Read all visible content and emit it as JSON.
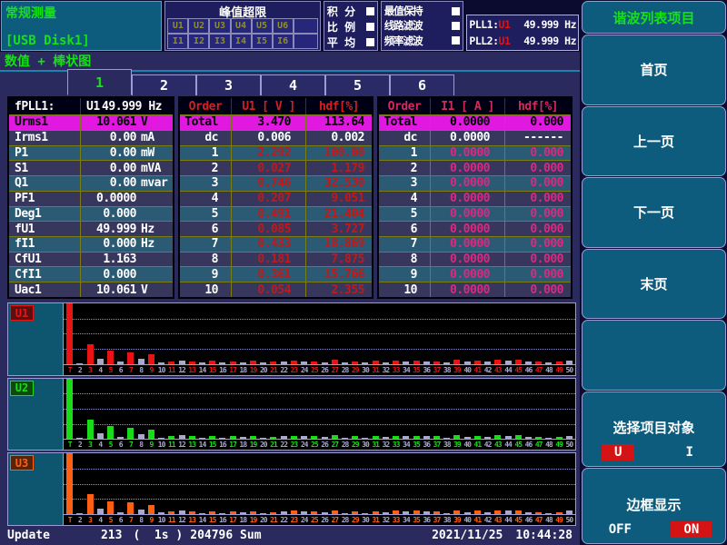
{
  "header": {
    "title": "常规测量",
    "usb": "[USB Disk1]",
    "peak_panel": {
      "title": "峰值超限",
      "row_u": [
        "U1",
        "U2",
        "U3",
        "U4",
        "U5",
        "U6",
        ""
      ],
      "row_i": [
        "I1",
        "I2",
        "I3",
        "I4",
        "I5",
        "I6",
        ""
      ]
    },
    "modes": [
      "积 分",
      "比 例",
      "平 均"
    ],
    "filters": [
      "最值保持",
      "线路滤波",
      "频率滤波"
    ],
    "pll": [
      {
        "name": "PLL1:",
        "source": "U1",
        "value": "49.999 Hz"
      },
      {
        "name": "PLL2:",
        "source": "U1",
        "value": "49.999 Hz"
      }
    ]
  },
  "view_label": "数值 + 棒状图",
  "tabs": {
    "items": [
      "1",
      "2",
      "3",
      "4",
      "5",
      "6"
    ],
    "active_index": 0
  },
  "left_table": {
    "header": {
      "name": "fPLL1:",
      "source": "U1",
      "value": "49.999 Hz"
    },
    "rows": [
      {
        "name": "Urms1",
        "value": "10.061",
        "unit": "V",
        "highlight": true
      },
      {
        "name": "Irms1",
        "value": "0.00",
        "unit": "mA"
      },
      {
        "name": "P1",
        "value": "0.00",
        "unit": "mW"
      },
      {
        "name": "S1",
        "value": "0.00",
        "unit": "mVA"
      },
      {
        "name": "Q1",
        "value": "0.00",
        "unit": "mvar"
      },
      {
        "name": "PF1",
        "value": "0.0000",
        "unit": ""
      },
      {
        "name": "Deg1",
        "value": "0.000",
        "unit": ""
      },
      {
        "name": "fU1",
        "value": "49.999",
        "unit": "Hz"
      },
      {
        "name": "fI1",
        "value": "0.000",
        "unit": "Hz"
      },
      {
        "name": "CfU1",
        "value": "1.163",
        "unit": ""
      },
      {
        "name": "CfI1",
        "value": "0.000",
        "unit": ""
      },
      {
        "name": "Uac1",
        "value": "10.061",
        "unit": "V"
      }
    ]
  },
  "u_table": {
    "headers": [
      "Order",
      "U1 [ V ]",
      "hdf[%]"
    ],
    "rows": [
      {
        "order": "Total",
        "value": "3.470",
        "hdf": "113.64",
        "highlight": true
      },
      {
        "order": "dc",
        "value": "0.006",
        "hdf": "0.002",
        "white": true
      },
      {
        "order": "1",
        "value": "2.292",
        "hdf": "100.00"
      },
      {
        "order": "2",
        "value": "0.027",
        "hdf": "1.179"
      },
      {
        "order": "3",
        "value": "0.746",
        "hdf": "32.530"
      },
      {
        "order": "4",
        "value": "0.207",
        "hdf": "9.051"
      },
      {
        "order": "5",
        "value": "0.491",
        "hdf": "21.404"
      },
      {
        "order": "6",
        "value": "0.085",
        "hdf": "3.727"
      },
      {
        "order": "7",
        "value": "0.433",
        "hdf": "18.869"
      },
      {
        "order": "8",
        "value": "0.181",
        "hdf": "7.875"
      },
      {
        "order": "9",
        "value": "0.361",
        "hdf": "15.766"
      },
      {
        "order": "10",
        "value": "0.054",
        "hdf": "2.355"
      }
    ]
  },
  "i_table": {
    "headers": [
      "Order",
      "I1 [ A ]",
      "hdf[%]"
    ],
    "rows": [
      {
        "order": "Total",
        "value": "0.0000",
        "hdf": "0.000",
        "highlight": true
      },
      {
        "order": "dc",
        "value": "0.0000",
        "hdf": "------",
        "white": true
      },
      {
        "order": "1",
        "value": "0.0000",
        "hdf": "0.000"
      },
      {
        "order": "2",
        "value": "0.0000",
        "hdf": "0.000"
      },
      {
        "order": "3",
        "value": "0.0000",
        "hdf": "0.000"
      },
      {
        "order": "4",
        "value": "0.0000",
        "hdf": "0.000"
      },
      {
        "order": "5",
        "value": "0.0000",
        "hdf": "0.000"
      },
      {
        "order": "6",
        "value": "0.0000",
        "hdf": "0.000"
      },
      {
        "order": "7",
        "value": "0.0000",
        "hdf": "0.000"
      },
      {
        "order": "8",
        "value": "0.0000",
        "hdf": "0.000"
      },
      {
        "order": "9",
        "value": "0.0000",
        "hdf": "0.000"
      },
      {
        "order": "10",
        "value": "0.0000",
        "hdf": "0.000"
      }
    ]
  },
  "chart_data": {
    "type": "bar",
    "categories": [
      "T",
      "2",
      "3",
      "4",
      "5",
      "6",
      "7",
      "8",
      "9",
      "10",
      "11",
      "12",
      "13",
      "14",
      "15",
      "16",
      "17",
      "18",
      "19",
      "20",
      "21",
      "22",
      "23",
      "24",
      "25",
      "26",
      "27",
      "28",
      "29",
      "30",
      "31",
      "32",
      "33",
      "34",
      "35",
      "36",
      "37",
      "38",
      "39",
      "40",
      "41",
      "42",
      "43",
      "44",
      "45",
      "46",
      "47",
      "48",
      "49",
      "50"
    ],
    "shared_values": [
      113.64,
      1.179,
      32.53,
      9.051,
      21.404,
      3.727,
      18.869,
      7.875,
      15.766,
      2.355,
      4.4,
      6.0,
      4.4,
      2.2,
      5.0,
      2.2,
      4.4,
      2.8,
      5.0,
      2.2,
      3.3,
      4.4,
      5.5,
      4.4,
      4.4,
      2.8,
      6.6,
      2.2,
      4.4,
      2.2,
      5.0,
      2.8,
      5.5,
      4.4,
      5.5,
      4.4,
      4.4,
      2.2,
      6.6,
      3.3,
      5.5,
      3.3,
      6.6,
      5.5,
      6.6,
      3.3,
      3.3,
      2.2,
      3.3,
      5.5
    ],
    "series": [
      {
        "name": "U1",
        "color": "#e81414",
        "label_bg": "#5a1010"
      },
      {
        "name": "U2",
        "color": "#17dc17",
        "label_bg": "#0e4a0e"
      },
      {
        "name": "U3",
        "color": "#ff5f12",
        "label_bg": "#572409"
      }
    ],
    "even_bar_color": "#a9a9cf",
    "ylim": [
      0,
      100
    ],
    "gridlines_percent": [
      25,
      50,
      75
    ]
  },
  "sidebar": {
    "title": "谐波列表项目",
    "nav": [
      "首页",
      "上一页",
      "下一页",
      "末页"
    ],
    "select_object": {
      "label": "选择项目对象",
      "options": [
        {
          "label": "U",
          "active": true
        },
        {
          "label": "I",
          "active": false
        }
      ]
    },
    "border_display": {
      "label": "边框显示",
      "options": [
        {
          "label": "OFF",
          "active": false
        },
        {
          "label": "ON",
          "active": true
        }
      ]
    }
  },
  "statusbar": {
    "update_label": "Update",
    "count": "213",
    "interval": "(  1s )",
    "sum": "204796 Sum",
    "date": "2021/11/25",
    "time": "10:44:28"
  },
  "colors": {
    "accent_green": "#16e016",
    "alarm_red": "#d41414",
    "highlight_magenta": "#e018e0"
  }
}
